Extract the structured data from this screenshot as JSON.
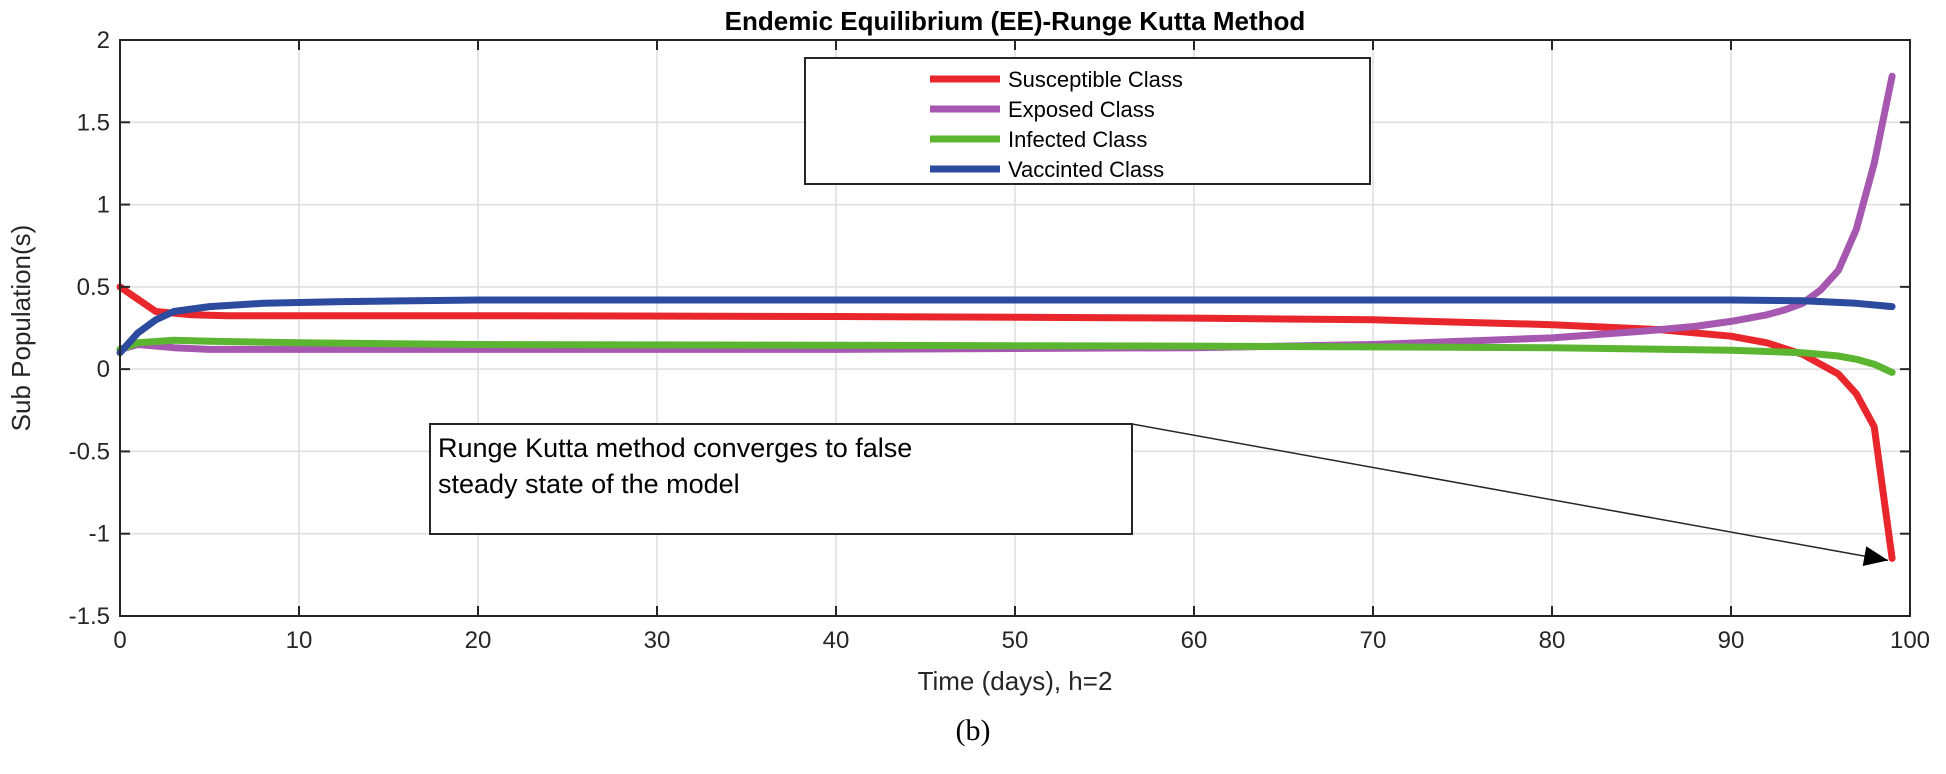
{
  "chart_data": {
    "type": "line",
    "title": "Endemic Equilibrium (EE)-Runge Kutta Method",
    "xlabel": "Time (days), h=2",
    "ylabel": "Sub Population(s)",
    "xlim": [
      0,
      100
    ],
    "ylim": [
      -1.5,
      2
    ],
    "xticks": [
      0,
      10,
      20,
      30,
      40,
      50,
      60,
      70,
      80,
      90,
      100
    ],
    "yticks": [
      -1.5,
      -1,
      -0.5,
      0,
      0.5,
      1,
      1.5,
      2
    ],
    "xtick_labels": [
      "0",
      "10",
      "20",
      "30",
      "40",
      "50",
      "60",
      "70",
      "80",
      "90",
      "100"
    ],
    "ytick_labels": [
      "-1.5",
      "-1",
      "-0.5",
      "0",
      "0.5",
      "1",
      "1.5",
      "2"
    ],
    "grid": true,
    "legend_position": "top-center",
    "series": [
      {
        "name": "Susceptible Class",
        "color": "#e8262b",
        "x": [
          0,
          2,
          4,
          6,
          10,
          20,
          40,
          60,
          70,
          80,
          86,
          90,
          92,
          94,
          96,
          97,
          98,
          99
        ],
        "y": [
          0.5,
          0.35,
          0.33,
          0.325,
          0.325,
          0.325,
          0.32,
          0.31,
          0.3,
          0.27,
          0.24,
          0.2,
          0.16,
          0.09,
          -0.03,
          -0.15,
          -0.35,
          -1.15
        ]
      },
      {
        "name": "Exposed Class",
        "color": "#a657b0",
        "x": [
          0,
          1,
          3,
          5,
          10,
          20,
          40,
          60,
          70,
          80,
          85,
          88,
          90,
          92,
          93,
          94,
          95,
          96,
          97,
          98,
          99
        ],
        "y": [
          0.12,
          0.15,
          0.13,
          0.12,
          0.12,
          0.12,
          0.12,
          0.13,
          0.15,
          0.19,
          0.23,
          0.26,
          0.29,
          0.33,
          0.36,
          0.4,
          0.48,
          0.6,
          0.85,
          1.25,
          1.78
        ]
      },
      {
        "name": "Infected Class",
        "color": "#5cb531",
        "x": [
          0,
          1,
          3,
          5,
          10,
          20,
          40,
          60,
          80,
          90,
          94,
          96,
          97,
          98,
          99
        ],
        "y": [
          0.12,
          0.16,
          0.175,
          0.17,
          0.16,
          0.15,
          0.145,
          0.14,
          0.13,
          0.115,
          0.1,
          0.08,
          0.06,
          0.03,
          -0.02
        ]
      },
      {
        "name": "Vaccinted Class",
        "color": "#2c4a9e",
        "x": [
          0,
          1,
          2,
          3,
          5,
          8,
          12,
          20,
          40,
          60,
          80,
          90,
          94,
          97,
          99
        ],
        "y": [
          0.1,
          0.22,
          0.3,
          0.35,
          0.38,
          0.4,
          0.41,
          0.42,
          0.42,
          0.42,
          0.42,
          0.42,
          0.415,
          0.4,
          0.38
        ]
      }
    ],
    "annotation": {
      "lines": [
        "Runge Kutta method converges to false",
        "steady state of the model"
      ],
      "arrow_target": [
        99,
        -1.15
      ]
    }
  },
  "caption": "(b)"
}
